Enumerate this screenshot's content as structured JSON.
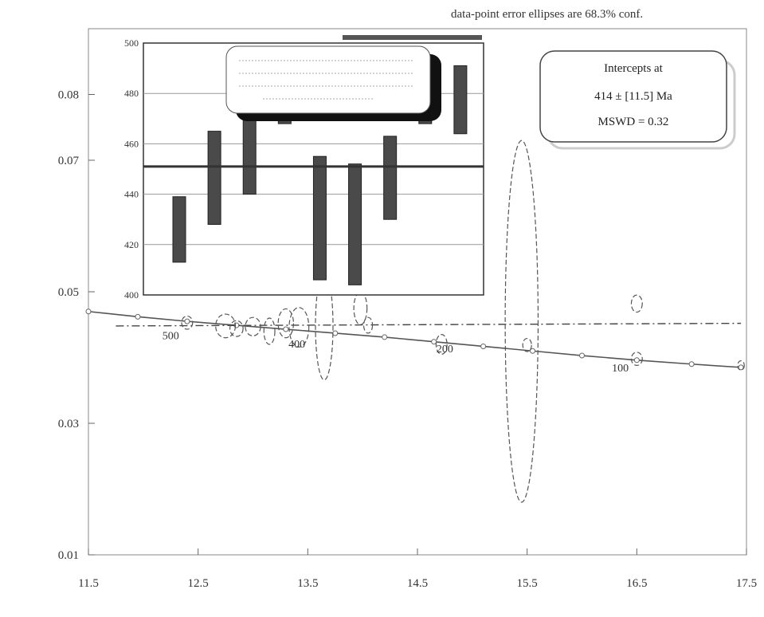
{
  "chart_data": {
    "type": "scatter",
    "note": "data-point error ellipses are 68.3% conf.",
    "xlabel": "",
    "ylabel": "",
    "xlim": [
      11.5,
      17.5
    ],
    "ylim": [
      0.01,
      0.09
    ],
    "x_ticks": [
      11.5,
      12.5,
      13.5,
      14.5,
      15.5,
      16.5,
      17.5
    ],
    "x_tick_labels": [
      "11.5",
      "12.5",
      "13.5",
      "14.5",
      "15.5",
      "16.5",
      "17.5"
    ],
    "y_ticks": [
      0.01,
      0.03,
      0.05,
      0.07,
      0.08
    ],
    "y_tick_labels": [
      "0.01",
      "0.03",
      "0.05",
      "0.07",
      "0.08"
    ],
    "concordia": [
      {
        "x": 11.5,
        "y": 0.047
      },
      {
        "x": 11.95,
        "y": 0.0462
      },
      {
        "x": 12.4,
        "y": 0.0455
      },
      {
        "x": 12.85,
        "y": 0.0449
      },
      {
        "x": 13.3,
        "y": 0.0443
      },
      {
        "x": 13.75,
        "y": 0.0437
      },
      {
        "x": 14.2,
        "y": 0.0431
      },
      {
        "x": 14.65,
        "y": 0.0424
      },
      {
        "x": 15.1,
        "y": 0.0417
      },
      {
        "x": 15.55,
        "y": 0.041
      },
      {
        "x": 16.0,
        "y": 0.0403
      },
      {
        "x": 16.5,
        "y": 0.0396
      },
      {
        "x": 17.0,
        "y": 0.039
      },
      {
        "x": 17.45,
        "y": 0.0385
      }
    ],
    "concordia_ages": [
      {
        "label": "500",
        "x": 12.25,
        "y": 0.0428
      },
      {
        "label": "400",
        "x": 13.4,
        "y": 0.0415
      },
      {
        "label": "200",
        "x": 14.75,
        "y": 0.0408
      },
      {
        "label": "100",
        "x": 16.35,
        "y": 0.0379
      }
    ],
    "regression_line": [
      {
        "x": 11.75,
        "y": 0.0448
      },
      {
        "x": 17.45,
        "y": 0.0452
      }
    ],
    "ellipses": [
      {
        "x": 12.4,
        "y": 0.0453,
        "rx": 0.05,
        "ry": 0.001
      },
      {
        "x": 12.75,
        "y": 0.0448,
        "rx": 0.09,
        "ry": 0.0018
      },
      {
        "x": 12.85,
        "y": 0.0444,
        "rx": 0.06,
        "ry": 0.0012
      },
      {
        "x": 13.0,
        "y": 0.0447,
        "rx": 0.07,
        "ry": 0.0014
      },
      {
        "x": 13.15,
        "y": 0.044,
        "rx": 0.05,
        "ry": 0.002
      },
      {
        "x": 13.3,
        "y": 0.0452,
        "rx": 0.07,
        "ry": 0.0022
      },
      {
        "x": 13.42,
        "y": 0.0446,
        "rx": 0.09,
        "ry": 0.003
      },
      {
        "x": 13.65,
        "y": 0.0448,
        "rx": 0.08,
        "ry": 0.0082
      },
      {
        "x": 13.98,
        "y": 0.0475,
        "rx": 0.06,
        "ry": 0.0025
      },
      {
        "x": 14.05,
        "y": 0.0449,
        "rx": 0.04,
        "ry": 0.0012
      },
      {
        "x": 14.72,
        "y": 0.042,
        "rx": 0.05,
        "ry": 0.0015
      },
      {
        "x": 15.45,
        "y": 0.0455,
        "rx": 0.15,
        "ry": 0.0275
      },
      {
        "x": 15.5,
        "y": 0.0419,
        "rx": 0.04,
        "ry": 0.001
      },
      {
        "x": 16.5,
        "y": 0.0482,
        "rx": 0.05,
        "ry": 0.0013
      },
      {
        "x": 16.5,
        "y": 0.0398,
        "rx": 0.05,
        "ry": 0.001
      },
      {
        "x": 17.45,
        "y": 0.0388,
        "rx": 0.03,
        "ry": 0.0007
      }
    ],
    "intercept_box": {
      "title": "Intercepts at",
      "line2": "414  ±  [11.5] Ma",
      "line3": "MSWD = 0.32"
    },
    "inset": {
      "type": "bar",
      "ylim": [
        400,
        500
      ],
      "y_ticks": [
        400,
        420,
        440,
        460,
        480,
        500
      ],
      "y_tick_labels": [
        "400",
        "420",
        "440",
        "460",
        "480",
        "500"
      ],
      "mean": 451,
      "box_low": [
        413,
        428,
        440,
        468,
        406,
        404,
        430,
        468,
        464
      ],
      "box_high": [
        439,
        465,
        474,
        485,
        455,
        452,
        463,
        490,
        491
      ]
    }
  }
}
